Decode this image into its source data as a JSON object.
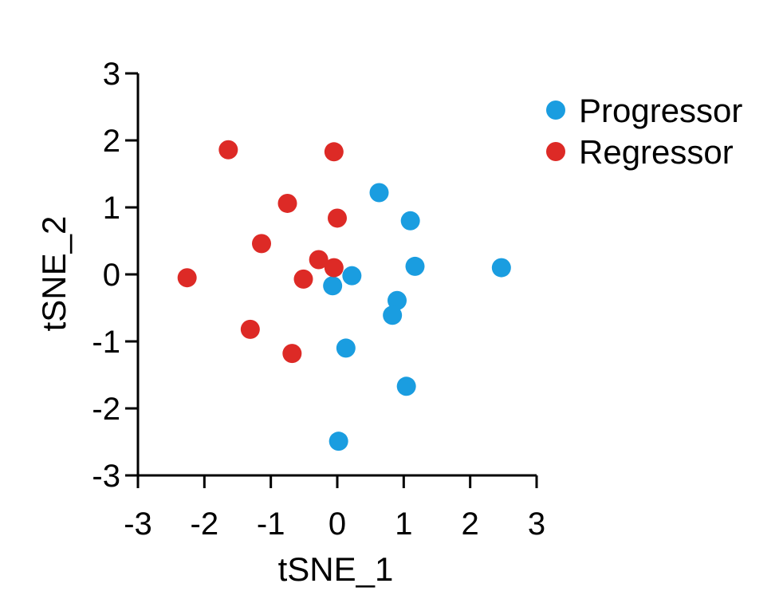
{
  "chart_data": {
    "type": "scatter",
    "title": "",
    "xlabel": "tSNE_1",
    "ylabel": "tSNE_2",
    "xlim": [
      -3,
      3
    ],
    "ylim": [
      -3,
      3
    ],
    "xticks": [
      -3,
      -2,
      -1,
      0,
      1,
      2,
      3
    ],
    "yticks": [
      -3,
      -2,
      -1,
      0,
      1,
      2,
      3
    ],
    "grid": false,
    "legend_position": "top-right",
    "series": [
      {
        "name": "Progressor",
        "color": "#1a9de0",
        "points": [
          {
            "x": 0.63,
            "y": 1.22
          },
          {
            "x": 1.1,
            "y": 0.8
          },
          {
            "x": 1.17,
            "y": 0.12
          },
          {
            "x": 2.47,
            "y": 0.1
          },
          {
            "x": 0.22,
            "y": -0.02
          },
          {
            "x": -0.07,
            "y": -0.17
          },
          {
            "x": 0.9,
            "y": -0.39
          },
          {
            "x": 0.83,
            "y": -0.61
          },
          {
            "x": 0.13,
            "y": -1.1
          },
          {
            "x": 1.04,
            "y": -1.67
          },
          {
            "x": 0.02,
            "y": -2.49
          }
        ]
      },
      {
        "name": "Regressor",
        "color": "#dd2a26",
        "points": [
          {
            "x": -1.64,
            "y": 1.86
          },
          {
            "x": -0.05,
            "y": 1.83
          },
          {
            "x": -0.75,
            "y": 1.06
          },
          {
            "x": 0.0,
            "y": 0.84
          },
          {
            "x": -1.14,
            "y": 0.46
          },
          {
            "x": -0.28,
            "y": 0.22
          },
          {
            "x": -0.05,
            "y": 0.1
          },
          {
            "x": -2.26,
            "y": -0.05
          },
          {
            "x": -0.51,
            "y": -0.07
          },
          {
            "x": -1.31,
            "y": -0.82
          },
          {
            "x": -0.68,
            "y": -1.18
          }
        ]
      }
    ]
  }
}
